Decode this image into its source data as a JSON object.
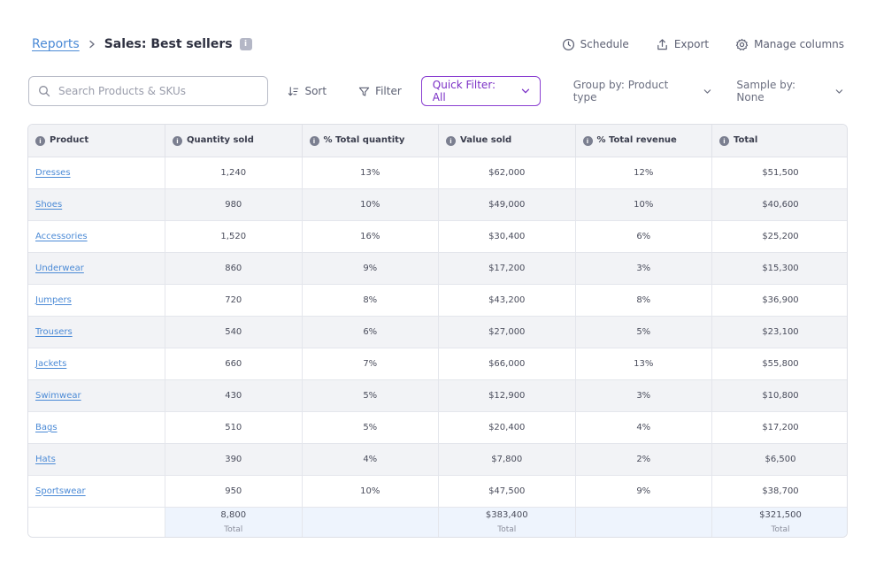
{
  "header": {
    "breadcrumb_link": "Reports",
    "title": "Sales: Best sellers",
    "info_badge": "i",
    "actions": {
      "schedule": "Schedule",
      "export": "Export",
      "manage_columns": "Manage columns"
    }
  },
  "toolbar": {
    "search_placeholder": "Search Products & SKUs",
    "sort": "Sort",
    "filter": "Filter",
    "quick_filter": "Quick Filter: All",
    "group_by": "Group by: Product type",
    "sample_by": "Sample by: None"
  },
  "table": {
    "columns": [
      "Product",
      "Quantity sold",
      "% Total quantity",
      "Value sold",
      "% Total revenue",
      "Total"
    ],
    "rows": [
      {
        "product": "Dresses",
        "qty": "1,240",
        "pct_qty": "13%",
        "value": "$62,000",
        "pct_rev": "12%",
        "total": "$51,500"
      },
      {
        "product": "Shoes",
        "qty": "980",
        "pct_qty": "10%",
        "value": "$49,000",
        "pct_rev": "10%",
        "total": "$40,600"
      },
      {
        "product": "Accessories",
        "qty": "1,520",
        "pct_qty": "16%",
        "value": "$30,400",
        "pct_rev": "6%",
        "total": "$25,200"
      },
      {
        "product": "Underwear",
        "qty": "860",
        "pct_qty": "9%",
        "value": "$17,200",
        "pct_rev": "3%",
        "total": "$15,300"
      },
      {
        "product": "Jumpers",
        "qty": "720",
        "pct_qty": "8%",
        "value": "$43,200",
        "pct_rev": "8%",
        "total": "$36,900"
      },
      {
        "product": "Trousers",
        "qty": "540",
        "pct_qty": "6%",
        "value": "$27,000",
        "pct_rev": "5%",
        "total": "$23,100"
      },
      {
        "product": "Jackets",
        "qty": "660",
        "pct_qty": "7%",
        "value": "$66,000",
        "pct_rev": "13%",
        "total": "$55,800"
      },
      {
        "product": "Swimwear",
        "qty": "430",
        "pct_qty": "5%",
        "value": "$12,900",
        "pct_rev": "3%",
        "total": "$10,800"
      },
      {
        "product": "Bags",
        "qty": "510",
        "pct_qty": "5%",
        "value": "$20,400",
        "pct_rev": "4%",
        "total": "$17,200"
      },
      {
        "product": "Hats",
        "qty": "390",
        "pct_qty": "4%",
        "value": "$7,800",
        "pct_rev": "2%",
        "total": "$6,500"
      },
      {
        "product": "Sportswear",
        "qty": "950",
        "pct_qty": "10%",
        "value": "$47,500",
        "pct_rev": "9%",
        "total": "$38,700"
      }
    ],
    "totals": {
      "qty": "8,800",
      "value": "$383,400",
      "total": "$321,500",
      "label": "Total"
    }
  },
  "colors": {
    "accent_purple": "#7a2fc6",
    "link_blue": "#4b8ad6",
    "footer_bg": "#eef4fd",
    "stripe_bg": "#f2f3f6"
  },
  "icons": [
    "chevron-right-icon",
    "info-icon",
    "clock-icon",
    "export-icon",
    "gear-icon",
    "search-icon",
    "sort-icon",
    "filter-icon",
    "chevron-down-icon"
  ]
}
